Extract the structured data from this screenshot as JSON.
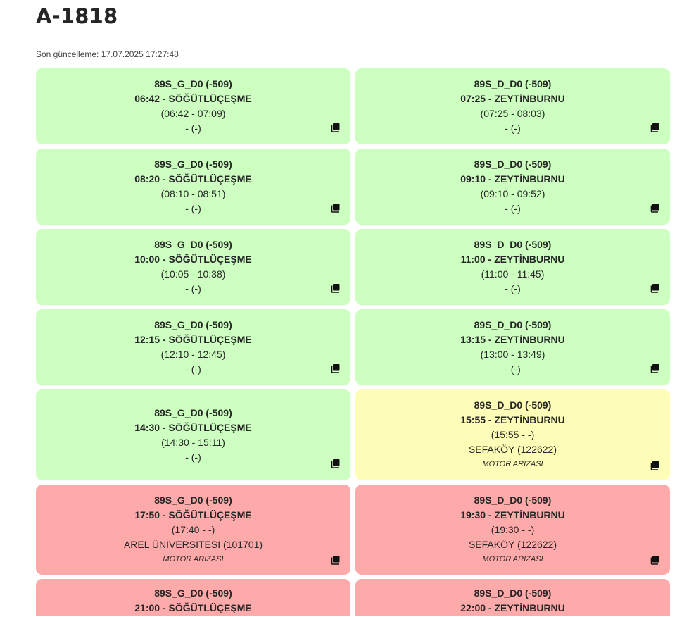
{
  "title": "A-1818",
  "last_update": "Son güncelleme: 17.07.2025 17:27:48",
  "icon": "copy-icon",
  "status_colors": {
    "green": "#ccffc0",
    "yellow": "#fdfdb7",
    "red": "#ffaaaa"
  },
  "trips": [
    {
      "status": "green",
      "route": "89S_G_D0 (-509)",
      "departure": "06:42 - SÖĞÜTLÜÇEŞME",
      "actual": "(06:42 - 07:09)",
      "stop": "- (-)",
      "note": ""
    },
    {
      "status": "green",
      "route": "89S_D_D0 (-509)",
      "departure": "07:25 - ZEYTİNBURNU",
      "actual": "(07:25 - 08:03)",
      "stop": "- (-)",
      "note": ""
    },
    {
      "status": "green",
      "route": "89S_G_D0 (-509)",
      "departure": "08:20 - SÖĞÜTLÜÇEŞME",
      "actual": "(08:10 - 08:51)",
      "stop": "- (-)",
      "note": ""
    },
    {
      "status": "green",
      "route": "89S_D_D0 (-509)",
      "departure": "09:10 - ZEYTİNBURNU",
      "actual": "(09:10 - 09:52)",
      "stop": "- (-)",
      "note": ""
    },
    {
      "status": "green",
      "route": "89S_G_D0 (-509)",
      "departure": "10:00 - SÖĞÜTLÜÇEŞME",
      "actual": "(10:05 - 10:38)",
      "stop": "- (-)",
      "note": ""
    },
    {
      "status": "green",
      "route": "89S_D_D0 (-509)",
      "departure": "11:00 - ZEYTİNBURNU",
      "actual": "(11:00 - 11:45)",
      "stop": "- (-)",
      "note": ""
    },
    {
      "status": "green",
      "route": "89S_G_D0 (-509)",
      "departure": "12:15 - SÖĞÜTLÜÇEŞME",
      "actual": "(12:10 - 12:45)",
      "stop": "- (-)",
      "note": ""
    },
    {
      "status": "green",
      "route": "89S_D_D0 (-509)",
      "departure": "13:15 - ZEYTİNBURNU",
      "actual": "(13:00 - 13:49)",
      "stop": "- (-)",
      "note": ""
    },
    {
      "status": "green",
      "route": "89S_G_D0 (-509)",
      "departure": "14:30 - SÖĞÜTLÜÇEŞME",
      "actual": "(14:30 - 15:11)",
      "stop": "- (-)",
      "note": ""
    },
    {
      "status": "yellow",
      "route": "89S_D_D0 (-509)",
      "departure": "15:55 - ZEYTİNBURNU",
      "actual": "(15:55 - -)",
      "stop": "SEFAKÖY (122622)",
      "note": "MOTOR ARIZASI"
    },
    {
      "status": "red",
      "route": "89S_G_D0 (-509)",
      "departure": "17:50 - SÖĞÜTLÜÇEŞME",
      "actual": "(17:40 - -)",
      "stop": "AREL ÜNİVERSİTESİ (101701)",
      "note": "MOTOR ARIZASI"
    },
    {
      "status": "red",
      "route": "89S_D_D0 (-509)",
      "departure": "19:30 - ZEYTİNBURNU",
      "actual": "(19:30 - -)",
      "stop": "SEFAKÖY (122622)",
      "note": "MOTOR ARIZASI"
    },
    {
      "status": "red",
      "route": "89S_G_D0 (-509)",
      "departure": "21:00 - SÖĞÜTLÜÇEŞME",
      "actual": "",
      "stop": "",
      "note": ""
    },
    {
      "status": "red",
      "route": "89S_D_D0 (-509)",
      "departure": "22:00 - ZEYTİNBURNU",
      "actual": "",
      "stop": "",
      "note": ""
    }
  ]
}
